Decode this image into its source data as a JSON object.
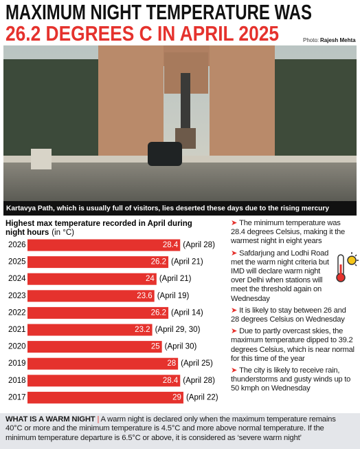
{
  "headline": [
    "MAXIMUM NIGHT TEMPERATURE WAS",
    "26.2 DEGREES C IN APRIL 2025"
  ],
  "photo_credit": {
    "label": "Photo:",
    "name": "Rajesh Mehta"
  },
  "caption": "Kartavya Path, which is usually full of visitors, lies deserted these days due to the rising mercury",
  "chart_data": {
    "type": "hbar",
    "title": "Highest max temperature recorded in April during night hours",
    "unit": "(in °C)",
    "categories": [
      "2026",
      "2025",
      "2024",
      "2023",
      "2022",
      "2021",
      "2020",
      "2019",
      "2018",
      "2017"
    ],
    "values": [
      28.4,
      26.2,
      24,
      23.6,
      26.2,
      23.2,
      25,
      28,
      28.4,
      29
    ],
    "annotations": [
      "(April 28)",
      "(April 21)",
      "(April 21)",
      "(April 19)",
      "(April 14)",
      "(April 29, 30)",
      "(April 30)",
      "(April 25)",
      "(April 28)",
      "(April 22)"
    ],
    "color": "#e5322d",
    "xlim": [
      0,
      30
    ]
  },
  "bullets": [
    "The minimum temperature was 28.4 degrees Celsius, making it the warmest night in eight years",
    "Safdarjung and Lodhi Road met the warm night criteria but IMD will declare warm night over Delhi when stations will meet the threshold again on Wednesday",
    "It is likely to stay between 26 and 28 degrees Celsius on Wednesday",
    "Due to partly overcast skies, the maximum temperature dipped to 39.2 degrees Celsius, which is near normal for this time of the year",
    "The city is likely to receive rain, thunderstorms and gusty winds up to 50 kmph on Wednesday"
  ],
  "footnote": {
    "heading": "WHAT IS A WARM NIGHT",
    "separator": "|",
    "text": "A warm night is declared only when the maximum temperature remains 40°C or more and the minimum temperature is 4.5°C and more above normal temperature. If the minimum temperature departure is 6.5°C or above, it is considered as ‘severe warm night’"
  }
}
